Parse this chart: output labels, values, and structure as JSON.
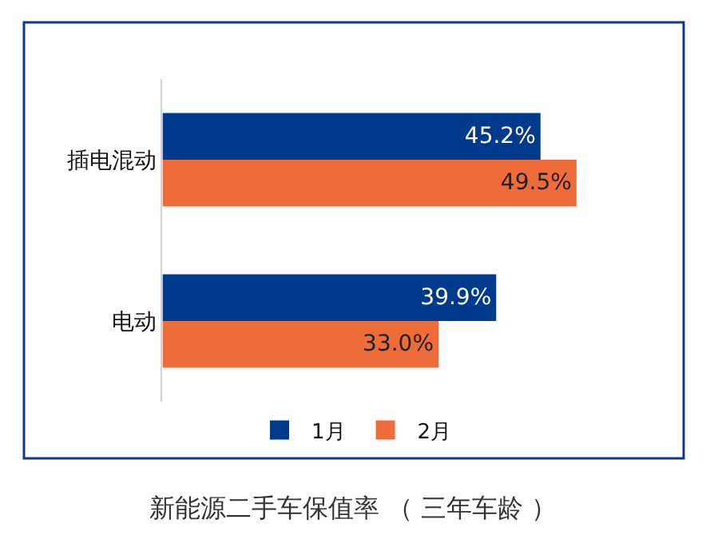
{
  "chart_data": {
    "type": "bar",
    "orientation": "horizontal",
    "title": "新能源二手车保值率 （ 三年车龄 ）",
    "categories": [
      "插电混动",
      "电动"
    ],
    "series": [
      {
        "name": "1月",
        "color": "#003a8c",
        "values": [
          45.2,
          39.9
        ],
        "value_labels": [
          "45.2%",
          "39.9%"
        ]
      },
      {
        "name": "2月",
        "color": "#ee6c3a",
        "values": [
          49.5,
          33.0
        ],
        "value_labels": [
          "49.5%",
          "33.0%"
        ]
      }
    ],
    "legend": "bottom"
  }
}
